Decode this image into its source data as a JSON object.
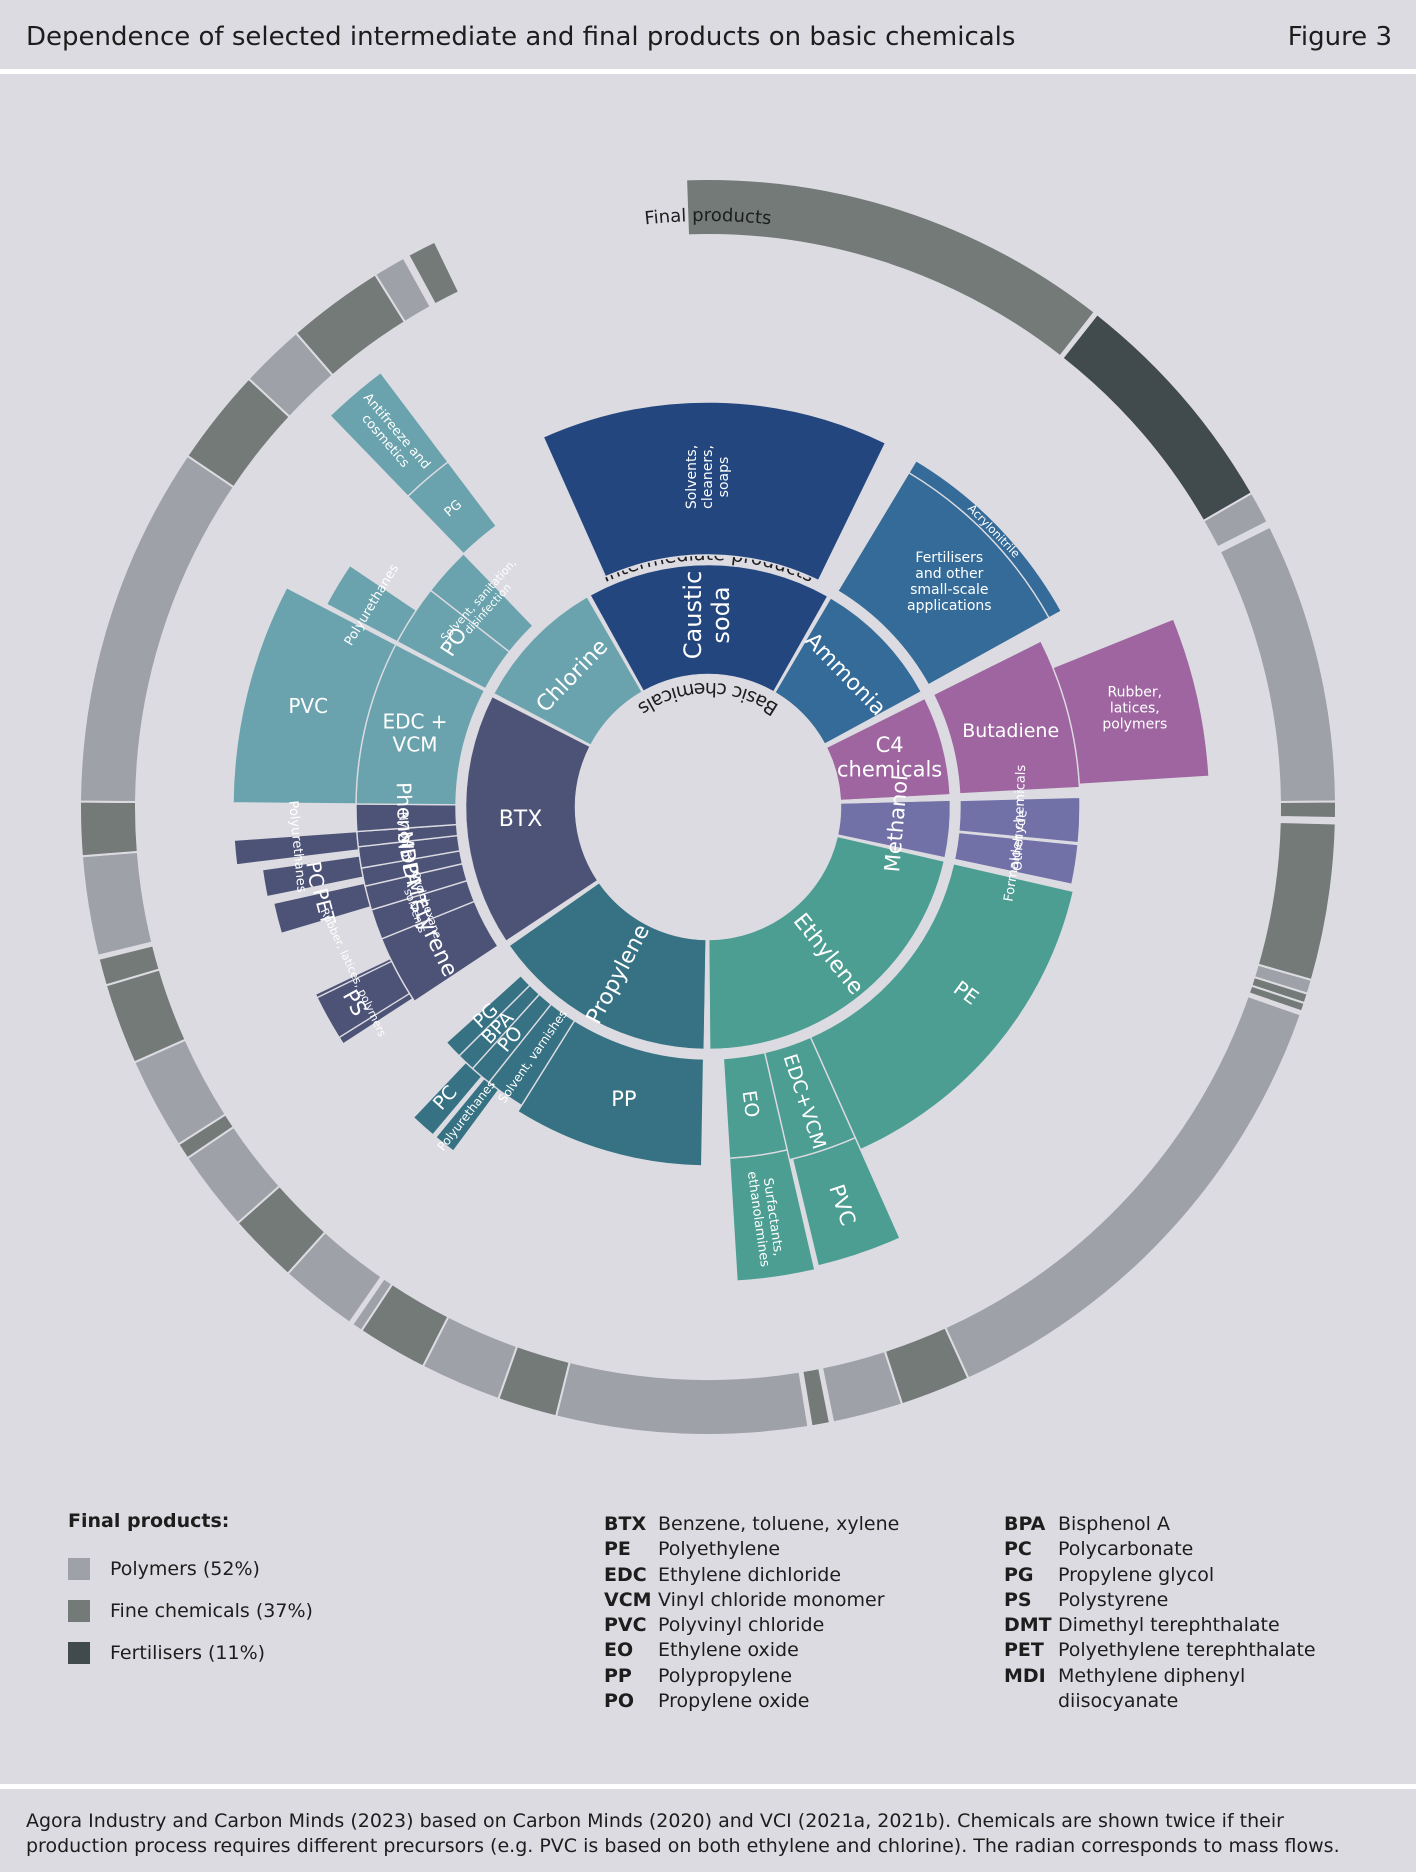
{
  "header": {
    "title": "Dependence of selected intermediate and final products on basic chemicals",
    "figure": "Figure 3"
  },
  "colors": {
    "polymers": "#9ea1a7",
    "fine": "#737a78",
    "fertilisers": "#414b4d",
    "caustic": "#23467f",
    "ammonia": "#346b98",
    "c4": "#9e65a0",
    "methanol": "#7171a8",
    "ethylene": "#4c9e92",
    "propylene": "#367283",
    "btx": "#4d5377",
    "chlorine": "#6aa3ae",
    "line": "#dcdbe1"
  },
  "diagram": {
    "basic_label": "Basic chemicals",
    "intermediate_label": "Intermediate products",
    "final_label": "Final products",
    "inner": [
      {
        "label": "Caustic soda",
        "color": "caustic"
      },
      {
        "label": "Ammonia",
        "color": "ammonia"
      },
      {
        "label": "C4 chemicals",
        "color": "c4"
      },
      {
        "label": "Methanol",
        "color": "methanol"
      },
      {
        "label": "Ethylene",
        "color": "ethylene"
      },
      {
        "label": "Propylene",
        "color": "propylene"
      },
      {
        "label": "BTX",
        "color": "btx"
      },
      {
        "label": "Chlorine",
        "color": "chlorine"
      }
    ],
    "intermediates": [
      {
        "label": "Solvents, cleaners, soaps",
        "color": "caustic"
      },
      {
        "label": "Fertilisers and other small-scale applications",
        "color": "ammonia"
      },
      {
        "label": "Acrylonitrile",
        "color": "ammonia"
      },
      {
        "label": "Butadiene",
        "color": "c4"
      },
      {
        "label": "Rubber, latices, polymers",
        "color": "c4"
      },
      {
        "label": "Other chemicals",
        "color": "methanol"
      },
      {
        "label": "Formaldehyde",
        "color": "methanol"
      },
      {
        "label": "PE",
        "color": "ethylene"
      },
      {
        "label": "EDC+VCM",
        "color": "ethylene"
      },
      {
        "label": "PVC",
        "color": "ethylene"
      },
      {
        "label": "EO",
        "color": "ethylene"
      },
      {
        "label": "Surfactants, ethanolamines",
        "color": "ethylene"
      },
      {
        "label": "PP",
        "color": "propylene"
      },
      {
        "label": "Solvent, varnishes",
        "color": "propylene"
      },
      {
        "label": "PO",
        "color": "propylene"
      },
      {
        "label": "BPA",
        "color": "propylene"
      },
      {
        "label": "PG",
        "color": "propylene"
      },
      {
        "label": "PC",
        "color": "propylene"
      },
      {
        "label": "Polyurethanes",
        "color": "propylene"
      },
      {
        "label": "styrene",
        "color": "btx"
      },
      {
        "label": "Rubber, latices, polymers",
        "color": "btx"
      },
      {
        "label": "PS",
        "color": "btx"
      },
      {
        "label": "Cyclohexane, solvents",
        "color": "btx"
      },
      {
        "label": "DMT",
        "color": "btx"
      },
      {
        "label": "PET",
        "color": "btx"
      },
      {
        "label": "BPA",
        "color": "btx"
      },
      {
        "label": "PC",
        "color": "btx"
      },
      {
        "label": "MDI",
        "color": "btx"
      },
      {
        "label": "Polyurethanes",
        "color": "btx"
      },
      {
        "label": "Nylon 6",
        "color": "btx"
      },
      {
        "label": "Phenol",
        "color": "btx"
      },
      {
        "label": "EDC + VCM",
        "color": "chlorine"
      },
      {
        "label": "PVC",
        "color": "chlorine"
      },
      {
        "label": "PO",
        "color": "chlorine"
      },
      {
        "label": "Polyurethanes",
        "color": "chlorine"
      },
      {
        "label": "Solvent, sanitation, disinfection",
        "color": "chlorine"
      },
      {
        "label": "PG",
        "color": "chlorine"
      },
      {
        "label": "Antifreeze and cosmetics",
        "color": "chlorine"
      }
    ]
  },
  "legend": {
    "title": "Final products:",
    "items": [
      {
        "label": "Polymers (52%)",
        "color": "#9ea1a7"
      },
      {
        "label": "Fine chemicals (37%)",
        "color": "#737a78"
      },
      {
        "label": "Fertilisers (11%)",
        "color": "#414b4d"
      }
    ]
  },
  "abbreviations": {
    "col1": [
      {
        "abbr": "BTX",
        "meaning": "Benzene, toluene, xylene"
      },
      {
        "abbr": "PE",
        "meaning": "Polyethylene"
      },
      {
        "abbr": "EDC",
        "meaning": "Ethylene dichloride"
      },
      {
        "abbr": "VCM",
        "meaning": "Vinyl chloride monomer"
      },
      {
        "abbr": "PVC",
        "meaning": "Polyvinyl chloride"
      },
      {
        "abbr": "EO",
        "meaning": "Ethylene oxide"
      },
      {
        "abbr": "PP",
        "meaning": "Polypropylene"
      },
      {
        "abbr": "PO",
        "meaning": "Propylene oxide"
      }
    ],
    "col2": [
      {
        "abbr": "BPA",
        "meaning": "Bisphenol A"
      },
      {
        "abbr": "PC",
        "meaning": "Polycarbonate"
      },
      {
        "abbr": "PG",
        "meaning": "Propylene glycol"
      },
      {
        "abbr": "PS",
        "meaning": "Polystyrene"
      },
      {
        "abbr": "DMT",
        "meaning": "Dimethyl terephthalate"
      },
      {
        "abbr": "PET",
        "meaning": "Polyethylene terephthalate"
      },
      {
        "abbr": "MDI",
        "meaning": "Methylene diphenyl\ndiisocyanate"
      }
    ]
  },
  "source": "Agora Industry and Carbon Minds (2023) based on Carbon Minds (2020) and VCI (2021a, 2021b). Chemicals are shown twice if their production process requires different precursors (e.g. PVC is based on both ethylene and chlorine). The radian corresponds to mass flows."
}
